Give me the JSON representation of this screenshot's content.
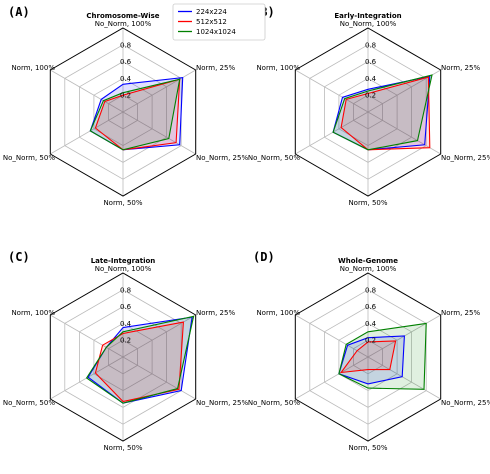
{
  "figure": {
    "legend_position": "top-center",
    "series": [
      {
        "name": "224x224",
        "color": "#0000ff"
      },
      {
        "name": "512x512",
        "color": "#ff0000"
      },
      {
        "name": "1024x1024",
        "color": "#008000"
      }
    ]
  },
  "chart_data": [
    {
      "panel": "(A)",
      "type": "radar",
      "title": "Chromosome-Wise",
      "axes": [
        "No_Norm, 100%",
        "Norm, 25%",
        "No_Norm, 25%",
        "Norm, 50%",
        "No_Norm, 50%",
        "Norm, 100%"
      ],
      "r_ticks": [
        "0.2",
        "0.4",
        "0.6",
        "0.8"
      ],
      "r_range": [
        0,
        1.0
      ],
      "grid": true,
      "series": [
        {
          "name": "224x224",
          "values": [
            0.33,
            0.82,
            0.78,
            0.45,
            0.45,
            0.3
          ]
        },
        {
          "name": "512x512",
          "values": [
            0.2,
            0.78,
            0.73,
            0.45,
            0.38,
            0.25
          ]
        },
        {
          "name": "1024x1024",
          "values": [
            0.23,
            0.78,
            0.63,
            0.45,
            0.45,
            0.27
          ]
        }
      ]
    },
    {
      "panel": "(B)",
      "type": "radar",
      "title": "Early-Integration",
      "axes": [
        "No_Norm, 100%",
        "Norm, 25%",
        "No_Norm, 25%",
        "Norm, 50%",
        "No_Norm, 50%",
        "Norm, 100%"
      ],
      "r_ticks": [
        "0.2",
        "0.4",
        "0.6",
        "0.8"
      ],
      "r_range": [
        0,
        1.0
      ],
      "grid": true,
      "series": [
        {
          "name": "224x224",
          "values": [
            0.27,
            0.85,
            0.78,
            0.45,
            0.48,
            0.35
          ]
        },
        {
          "name": "512x512",
          "values": [
            0.22,
            0.83,
            0.85,
            0.45,
            0.37,
            0.3
          ]
        },
        {
          "name": "1024x1024",
          "values": [
            0.25,
            0.88,
            0.68,
            0.45,
            0.48,
            0.32
          ]
        }
      ]
    },
    {
      "panel": "(C)",
      "type": "radar",
      "title": "Late-Integration",
      "axes": [
        "No_Norm, 100%",
        "Norm, 25%",
        "No_Norm, 25%",
        "Norm, 50%",
        "No_Norm, 50%",
        "Norm, 100%"
      ],
      "r_ticks": [
        "0.2",
        "0.4",
        "0.6",
        "0.8"
      ],
      "r_range": [
        0,
        1.0
      ],
      "grid": true,
      "series": [
        {
          "name": "224x224",
          "values": [
            0.35,
            0.95,
            0.8,
            0.55,
            0.48,
            0.23
          ]
        },
        {
          "name": "512x512",
          "values": [
            0.28,
            0.83,
            0.77,
            0.53,
            0.38,
            0.28
          ]
        },
        {
          "name": "1024x1024",
          "values": [
            0.3,
            0.97,
            0.75,
            0.55,
            0.5,
            0.23
          ]
        }
      ]
    },
    {
      "panel": "(D)",
      "type": "radar",
      "title": "Whole-Genome",
      "axes": [
        "No_Norm, 100%",
        "Norm, 25%",
        "No_Norm, 25%",
        "Norm, 50%",
        "No_Norm, 50%",
        "Norm, 100%"
      ],
      "r_ticks": [
        "0.2",
        "0.4",
        "0.6",
        "0.8"
      ],
      "r_range": [
        0,
        1.0
      ],
      "grid": true,
      "series": [
        {
          "name": "224x224",
          "values": [
            0.23,
            0.5,
            0.47,
            0.32,
            0.4,
            0.28
          ]
        },
        {
          "name": "512x512",
          "values": [
            0.18,
            0.38,
            0.3,
            0.15,
            0.37,
            0.15
          ]
        },
        {
          "name": "1024x1024",
          "values": [
            0.3,
            0.8,
            0.77,
            0.37,
            0.4,
            0.3
          ]
        }
      ]
    }
  ]
}
